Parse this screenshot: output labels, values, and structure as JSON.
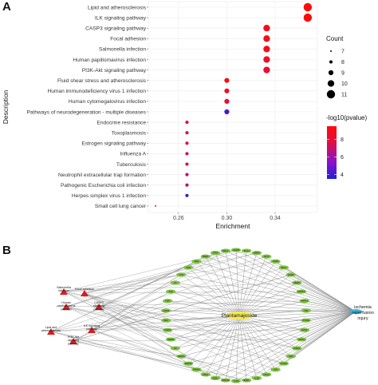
{
  "panel_a_letter": "A",
  "panel_b_letter": "B",
  "chart_data": {
    "type": "scatter",
    "xlabel": "Enrichment",
    "ylabel": "Description",
    "xlim": [
      0.235,
      0.375
    ],
    "xticks": [
      0.26,
      0.3,
      0.34
    ],
    "xtick_labels": [
      "0.26",
      "0.30",
      "0.34"
    ],
    "grid": true,
    "legend_position": "right",
    "categories": [
      "Lipid and atherosclerosis",
      "ILK signaling pathway",
      "CASP3 signaling pathway",
      "Focal adhesion",
      "Salmonella infection",
      "Human papillomavirus infection",
      "PI3K-Akt signaling pathway",
      "Fluid shear stress and atherosclerosis",
      "Human immunodeficiency virus 1 infection",
      "Human cytomegalovirus infection",
      "Pathways of neurodegeneration - multiple diseases",
      "Endocrine resistance",
      "Toxoplasmosis",
      "Estrogen signaling pathway",
      "Influenza A",
      "Tuberculosis",
      "Neutrophil extracellular trap formation",
      "Pathogenic Escherichia coli infection",
      "Herpes simplex virus 1 infection",
      "Small cell lung cancer"
    ],
    "enrichment": [
      0.367,
      0.367,
      0.333,
      0.333,
      0.333,
      0.333,
      0.333,
      0.3,
      0.3,
      0.3,
      0.3,
      0.267,
      0.267,
      0.267,
      0.267,
      0.267,
      0.267,
      0.267,
      0.267,
      0.241
    ],
    "count": [
      11,
      11,
      10,
      10,
      10,
      10,
      10,
      9,
      9,
      9,
      9,
      8,
      8,
      8,
      8,
      8,
      8,
      8,
      8,
      7
    ],
    "neg_log10_pvalue": [
      9.5,
      9.5,
      9.0,
      9.0,
      9.0,
      8.6,
      8.2,
      9.2,
      8.6,
      8.2,
      4.2,
      8.0,
      7.6,
      7.6,
      7.2,
      7.2,
      6.6,
      6.6,
      3.8,
      8.8
    ],
    "size_legend": {
      "title": "Count",
      "values": [
        7,
        8,
        9,
        10,
        11
      ],
      "labels": [
        "7",
        "8",
        "9",
        "10",
        "11"
      ]
    },
    "color_legend": {
      "title": "-log10(pvalue)",
      "min": 3.5,
      "max": 9.5,
      "ticks": [
        4,
        6,
        8
      ],
      "tick_labels": [
        "4",
        "6",
        "8"
      ],
      "colors": [
        "#1f1fd8",
        "#8e12c8",
        "#e0103f",
        "#ff0a0a"
      ]
    }
  },
  "network": {
    "center_label": "Plantamajoside",
    "disease_label_lines": [
      "ischemia",
      "reperfusion",
      "injury"
    ],
    "colors": {
      "gene": "#7ec242",
      "center": "#f5ea57",
      "disease": "#3bb7d9",
      "pathway": "#d81e1e",
      "edge": "#8a8a8a"
    },
    "pathway_labels": [
      [
        "Salmonella",
        "infection"
      ],
      [
        "Focal adhesion"
      ],
      [
        "Human",
        "papillomavirus",
        "infection"
      ],
      [
        "CASP3",
        "signaling",
        "pathway"
      ],
      [
        "Lipid and",
        "atherosclerosis"
      ],
      [
        "ILK signaling",
        "pathway"
      ],
      [
        "PI3K-Akt",
        "signaling",
        "pathway"
      ]
    ],
    "gene_labels": [
      "CASP9",
      "PLAU",
      "MMP2",
      "AKT1",
      "ITGB1",
      "BCL2",
      "EGFR",
      "MMP9",
      "MAPK3",
      "MAPK1",
      "TNF",
      "PTGS2",
      "NOS3",
      "STAT3",
      "ICAM1",
      "SRC",
      "CCND1",
      "JUN",
      "HIF1A",
      "IL1B",
      "ESR1",
      "TLR4",
      "HMOX1",
      "SIRT1",
      "CDK1",
      "PPARG",
      "MAPK8",
      "VEGFA",
      "IL6",
      "NFKB1",
      "CASP3",
      "BAX",
      "MTOR",
      "KDR",
      "ALB",
      "F2",
      "FYN",
      "ACE",
      "ADA",
      "MMP1",
      "TP53",
      "RELA"
    ]
  }
}
